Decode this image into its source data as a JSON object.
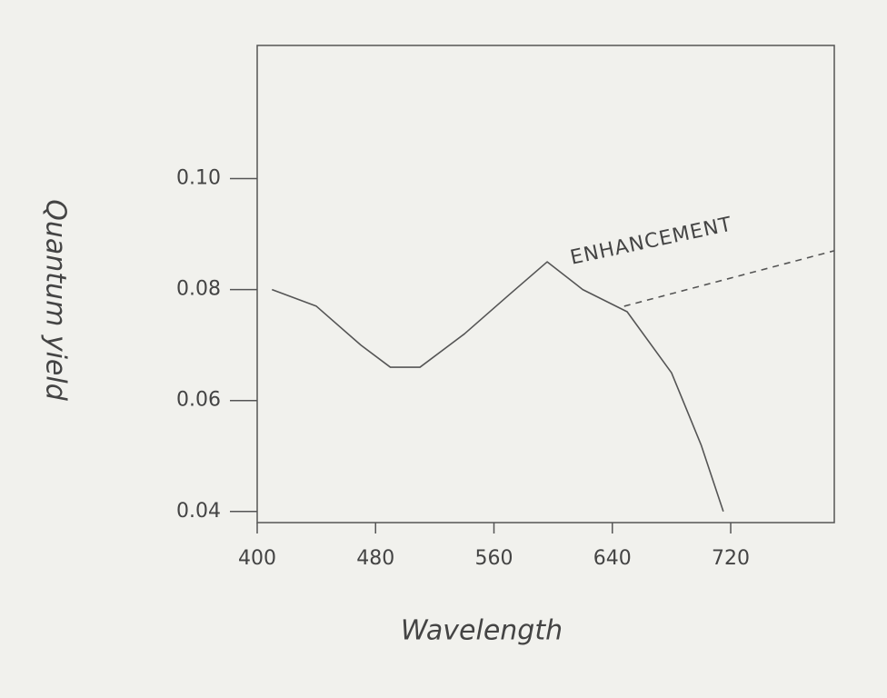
{
  "chart_data": {
    "type": "line",
    "x_label": "Wavelength",
    "y_label": "Quantum yield",
    "annotation": "ENHANCEMENT",
    "xlim": [
      400,
      790
    ],
    "ylim": [
      0.038,
      0.124
    ],
    "xticks": [
      400,
      480,
      560,
      640,
      720
    ],
    "yticks": [
      {
        "value": 0.04,
        "label": "0.04"
      },
      {
        "value": 0.06,
        "label": "0.06"
      },
      {
        "value": 0.08,
        "label": "0.08"
      },
      {
        "value": 0.1,
        "label": "0.10"
      }
    ],
    "grid": false,
    "series": [
      {
        "color": "#555555",
        "dashed": false,
        "x": [
          410,
          440,
          470,
          490,
          510,
          540,
          570,
          596,
          620,
          650,
          680,
          700,
          715
        ],
        "values": [
          0.08,
          0.077,
          0.07,
          0.066,
          0.066,
          0.072,
          0.079,
          0.085,
          0.08,
          0.076,
          0.065,
          0.052,
          0.04
        ]
      },
      {
        "color": "#555555",
        "dashed": true,
        "x": [
          648,
          790
        ],
        "values": [
          0.077,
          0.087
        ]
      }
    ]
  }
}
